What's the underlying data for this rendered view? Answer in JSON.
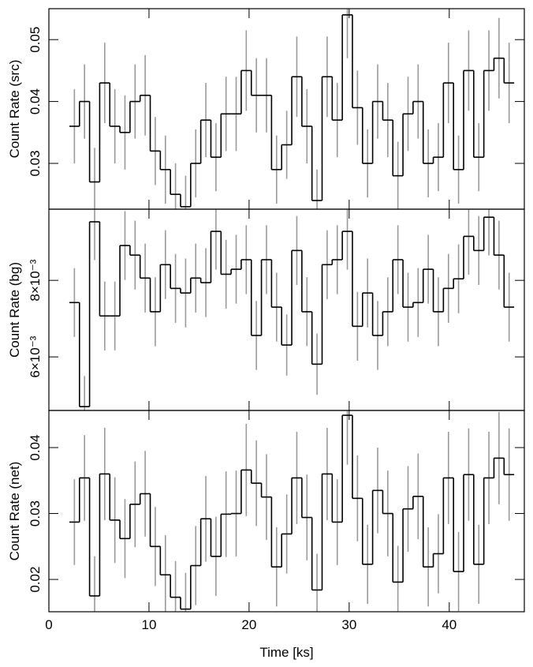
{
  "chart_data": [
    {
      "type": "step",
      "ylabel": "Count Rate (src)",
      "x": [
        2.55,
        3.56,
        4.57,
        5.58,
        6.59,
        7.6,
        8.61,
        9.62,
        10.63,
        11.64,
        12.65,
        13.66,
        14.67,
        15.68,
        16.69,
        17.7,
        18.71,
        19.72,
        20.73,
        21.74,
        22.75,
        23.76,
        24.77,
        25.78,
        26.79,
        27.8,
        28.81,
        29.82,
        30.83,
        31.84,
        32.85,
        33.86,
        34.87,
        35.88,
        36.89,
        37.9,
        38.91,
        39.92,
        40.93,
        41.94,
        42.95,
        43.96,
        44.97,
        45.98
      ],
      "series": [
        {
          "color": "#000000",
          "error_color": "#9a9a9a",
          "values": [
            0.036,
            0.04,
            0.027,
            0.043,
            0.036,
            0.035,
            0.04,
            0.041,
            0.032,
            0.029,
            0.025,
            0.023,
            0.03,
            0.037,
            0.031,
            0.038,
            0.038,
            0.045,
            0.041,
            0.041,
            0.029,
            0.033,
            0.044,
            0.036,
            0.024,
            0.044,
            0.037,
            0.054,
            0.039,
            0.03,
            0.04,
            0.037,
            0.028,
            0.038,
            0.04,
            0.03,
            0.031,
            0.043,
            0.029,
            0.045,
            0.031,
            0.045,
            0.047,
            0.043
          ],
          "errors": [
            0.006,
            0.006,
            0.0055,
            0.0065,
            0.006,
            0.006,
            0.006,
            0.0065,
            0.0055,
            0.0055,
            0.005,
            0.005,
            0.0055,
            0.006,
            0.0055,
            0.006,
            0.006,
            0.0065,
            0.006,
            0.006,
            0.0055,
            0.0055,
            0.0065,
            0.006,
            0.005,
            0.0065,
            0.006,
            0.007,
            0.006,
            0.0055,
            0.006,
            0.006,
            0.0055,
            0.006,
            0.006,
            0.0055,
            0.0055,
            0.0065,
            0.0055,
            0.0065,
            0.0055,
            0.0065,
            0.0065,
            0.0065
          ]
        }
      ],
      "xlim": [
        0,
        47.5
      ],
      "xticks": [
        0,
        10,
        20,
        30,
        40
      ],
      "ylim": [
        0.0226,
        0.055
      ],
      "yticks": [
        0.03,
        0.04,
        0.05
      ]
    },
    {
      "type": "step",
      "ylabel": "Count Rate (bg)",
      "x": [
        2.55,
        3.56,
        4.57,
        5.58,
        6.59,
        7.6,
        8.61,
        9.62,
        10.63,
        11.64,
        12.65,
        13.66,
        14.67,
        15.68,
        16.69,
        17.7,
        18.71,
        19.72,
        20.73,
        21.74,
        22.75,
        23.76,
        24.77,
        25.78,
        26.79,
        27.8,
        28.81,
        29.82,
        30.83,
        31.84,
        32.85,
        33.86,
        34.87,
        35.88,
        36.89,
        37.9,
        38.91,
        39.92,
        40.93,
        41.94,
        42.95,
        43.96,
        44.97,
        45.98
      ],
      "series": [
        {
          "color": "#000000",
          "error_color": "#9a9a9a",
          "values": [
            0.00742,
            0.0047,
            0.00953,
            0.00707,
            0.00707,
            0.00891,
            0.00866,
            0.00806,
            0.00718,
            0.00841,
            0.00779,
            0.00767,
            0.00806,
            0.00794,
            0.00928,
            0.00816,
            0.00829,
            0.00854,
            0.00656,
            0.00854,
            0.0073,
            0.00631,
            0.00878,
            0.00718,
            0.00581,
            0.00841,
            0.00854,
            0.00928,
            0.0068,
            0.00767,
            0.00656,
            0.00718,
            0.00854,
            0.0073,
            0.00742,
            0.00829,
            0.00718,
            0.00779,
            0.00804,
            0.00915,
            0.00878,
            0.00965,
            0.00866,
            0.0073
          ],
          "errors": [
            0.0009,
            0.0008,
            0.001,
            0.0009,
            0.0009,
            0.0009,
            0.0009,
            0.0009,
            0.0009,
            0.0009,
            0.0009,
            0.0009,
            0.0009,
            0.0009,
            0.001,
            0.0009,
            0.0009,
            0.0009,
            0.0009,
            0.0009,
            0.0009,
            0.0008,
            0.0009,
            0.0009,
            0.0008,
            0.0009,
            0.0009,
            0.001,
            0.0009,
            0.0009,
            0.0009,
            0.0009,
            0.0009,
            0.0009,
            0.0009,
            0.0009,
            0.0009,
            0.0009,
            0.0009,
            0.001,
            0.0009,
            0.001,
            0.0009,
            0.0009
          ]
        }
      ],
      "xlim": [
        0,
        47.5
      ],
      "xticks": [
        0,
        10,
        20,
        30,
        40
      ],
      "ylim": [
        0.0046,
        0.00986
      ],
      "yticks": [
        {
          "value": 0.006,
          "label": "6×10⁻³"
        },
        {
          "value": 0.008,
          "label": "8×10⁻³"
        }
      ]
    },
    {
      "type": "step",
      "ylabel": "Count Rate (net)",
      "xlabel": "Time [ks]",
      "x": [
        2.55,
        3.56,
        4.57,
        5.58,
        6.59,
        7.6,
        8.61,
        9.62,
        10.63,
        11.64,
        12.65,
        13.66,
        14.67,
        15.68,
        16.69,
        17.7,
        18.71,
        19.72,
        20.73,
        21.74,
        22.75,
        23.76,
        24.77,
        25.78,
        26.79,
        27.8,
        28.81,
        29.82,
        30.83,
        31.84,
        32.85,
        33.86,
        34.87,
        35.88,
        36.89,
        37.9,
        38.91,
        39.92,
        40.93,
        41.94,
        42.95,
        43.96,
        44.97,
        45.98
      ],
      "series": [
        {
          "color": "#000000",
          "error_color": "#9a9a9a",
          "values": [
            0.0287,
            0.0354,
            0.0175,
            0.036,
            0.029,
            0.0262,
            0.0314,
            0.033,
            0.025,
            0.0207,
            0.0173,
            0.0155,
            0.0221,
            0.0292,
            0.0235,
            0.0299,
            0.03,
            0.0366,
            0.0346,
            0.0325,
            0.0219,
            0.0269,
            0.0354,
            0.0294,
            0.0184,
            0.036,
            0.0287,
            0.0449,
            0.0323,
            0.0223,
            0.0335,
            0.03,
            0.0196,
            0.0307,
            0.0326,
            0.0219,
            0.0239,
            0.0354,
            0.0212,
            0.0359,
            0.0223,
            0.0354,
            0.0384,
            0.0359
          ],
          "errors": [
            0.0065,
            0.0065,
            0.006,
            0.007,
            0.0065,
            0.006,
            0.0065,
            0.0065,
            0.006,
            0.006,
            0.0055,
            0.0055,
            0.006,
            0.0065,
            0.006,
            0.0065,
            0.0065,
            0.007,
            0.0065,
            0.0065,
            0.006,
            0.006,
            0.007,
            0.0065,
            0.0055,
            0.007,
            0.0065,
            0.0075,
            0.0065,
            0.006,
            0.0065,
            0.0065,
            0.0055,
            0.0065,
            0.0065,
            0.006,
            0.006,
            0.007,
            0.006,
            0.007,
            0.006,
            0.007,
            0.007,
            0.007
          ]
        }
      ],
      "xlim": [
        0,
        47.5
      ],
      "xticks": [
        0,
        10,
        20,
        30,
        40
      ],
      "ylim": [
        0.0151,
        0.04563
      ],
      "yticks": [
        0.02,
        0.03,
        0.04
      ]
    }
  ]
}
